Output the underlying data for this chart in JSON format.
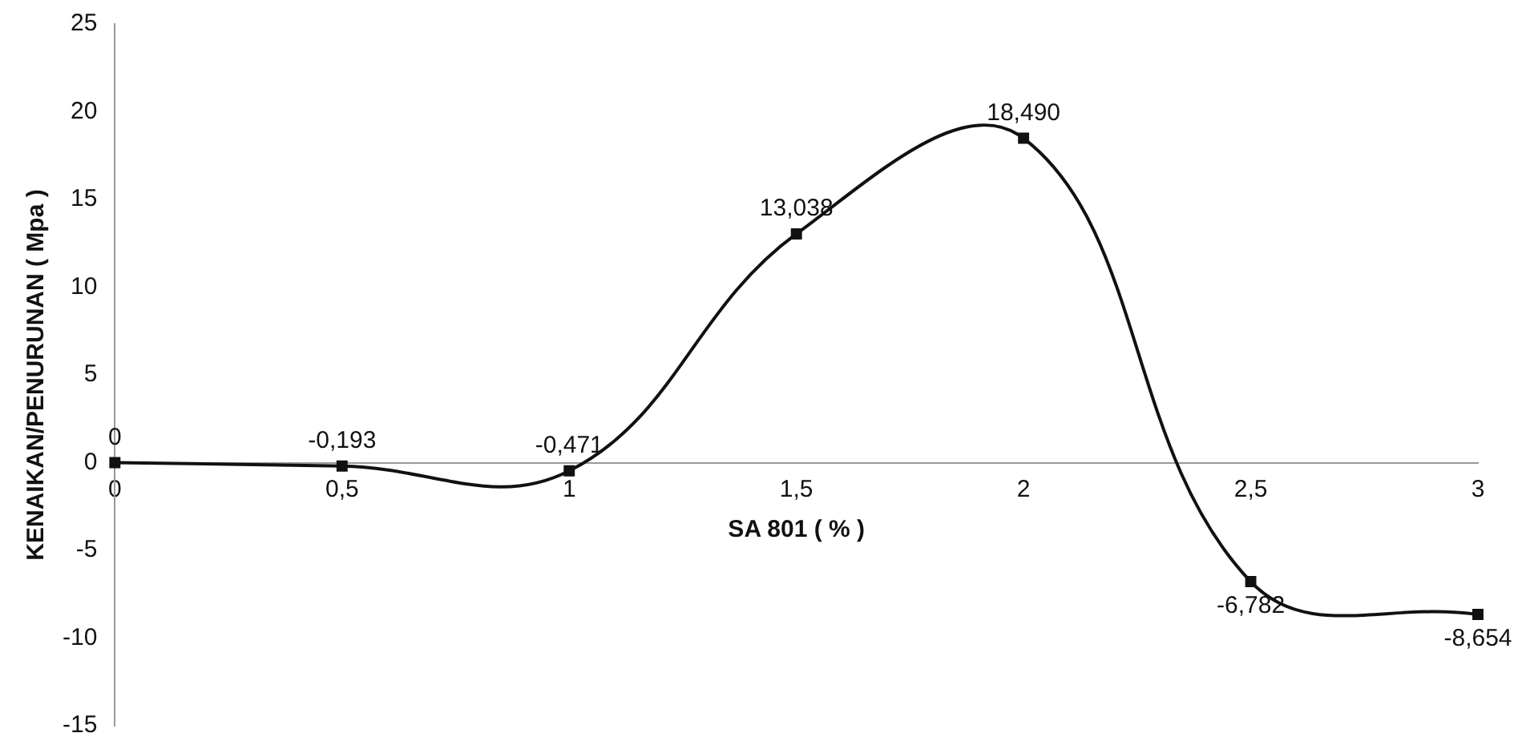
{
  "chart_data": {
    "type": "line",
    "xlabel": "SA 801 ( % )",
    "ylabel": "KENAIKAN/PENURUNAN ( Mpa )",
    "categories": [
      "0",
      "0,5",
      "1",
      "1,5",
      "2",
      "2,5",
      "3"
    ],
    "series": [
      {
        "color": "#111111",
        "values": [
          0,
          -0.193,
          -0.471,
          13.038,
          18.49,
          -6.782,
          -8.654
        ],
        "value_labels": [
          "0",
          "-0,193",
          "-0,471",
          "13,038",
          "18,490",
          "-6,782",
          "-8,654"
        ]
      }
    ],
    "ylim": [
      -15,
      25
    ],
    "yticks": [
      -15,
      -10,
      -5,
      0,
      5,
      10,
      15,
      20,
      25
    ],
    "grid": false,
    "legend": false,
    "marker": "square",
    "line_style": "solid"
  }
}
